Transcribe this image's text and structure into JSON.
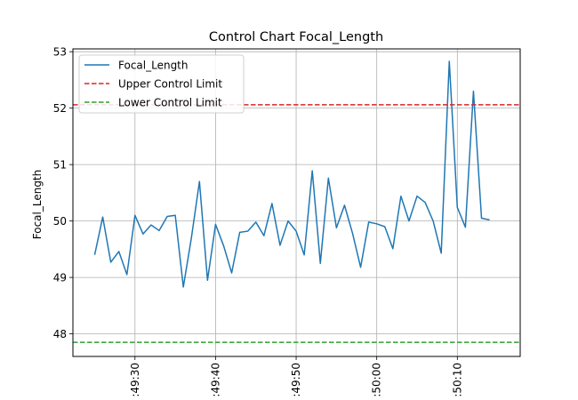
{
  "chart_data": {
    "type": "line",
    "title": "Control Chart Focal_Length",
    "xlabel": "",
    "ylabel": "Focal_Length",
    "ylim": [
      47.6,
      53.05
    ],
    "y_ticks": [
      48,
      49,
      50,
      51,
      52,
      53
    ],
    "x_tick_labels": [
      ":49:30",
      ":49:40",
      ":49:50",
      ":50:00",
      ":50:10"
    ],
    "x_tick_seconds": [
      30,
      40,
      50,
      60,
      70
    ],
    "xlim_seconds": [
      22.3,
      77.8
    ],
    "grid": true,
    "legend_position": "top-left",
    "series": [
      {
        "name": "Focal_Length",
        "color": "#1f77b4",
        "style": "solid",
        "x_seconds": [
          25,
          26,
          27,
          28,
          29,
          30,
          31,
          32,
          33,
          34,
          35,
          36,
          37,
          38,
          39,
          40,
          41,
          42,
          43,
          44,
          45,
          46,
          47,
          48,
          49,
          50,
          51,
          52,
          53,
          54,
          55,
          56,
          57,
          58,
          59,
          60,
          61,
          62,
          63,
          64,
          65,
          66,
          67,
          68,
          69,
          70,
          71,
          72,
          73,
          74
        ],
        "values": [
          49.4,
          50.07,
          49.27,
          49.46,
          49.05,
          50.1,
          49.77,
          49.93,
          49.83,
          50.08,
          50.1,
          48.83,
          49.7,
          50.7,
          48.95,
          49.94,
          49.56,
          49.08,
          49.8,
          49.82,
          49.98,
          49.74,
          50.31,
          49.57,
          50.0,
          49.82,
          49.4,
          50.89,
          49.25,
          50.76,
          49.88,
          50.28,
          49.78,
          49.18,
          49.98,
          49.95,
          49.9,
          49.51,
          50.44,
          50.0,
          50.44,
          50.33,
          50.0,
          49.43,
          52.83,
          50.24,
          49.89,
          52.3,
          50.05,
          50.02
        ]
      },
      {
        "name": "Upper Control Limit",
        "color": "#d62728",
        "style": "dashed",
        "value": 52.06
      },
      {
        "name": "Lower Control Limit",
        "color": "#2ca02c",
        "style": "dashed",
        "value": 47.85
      }
    ]
  }
}
